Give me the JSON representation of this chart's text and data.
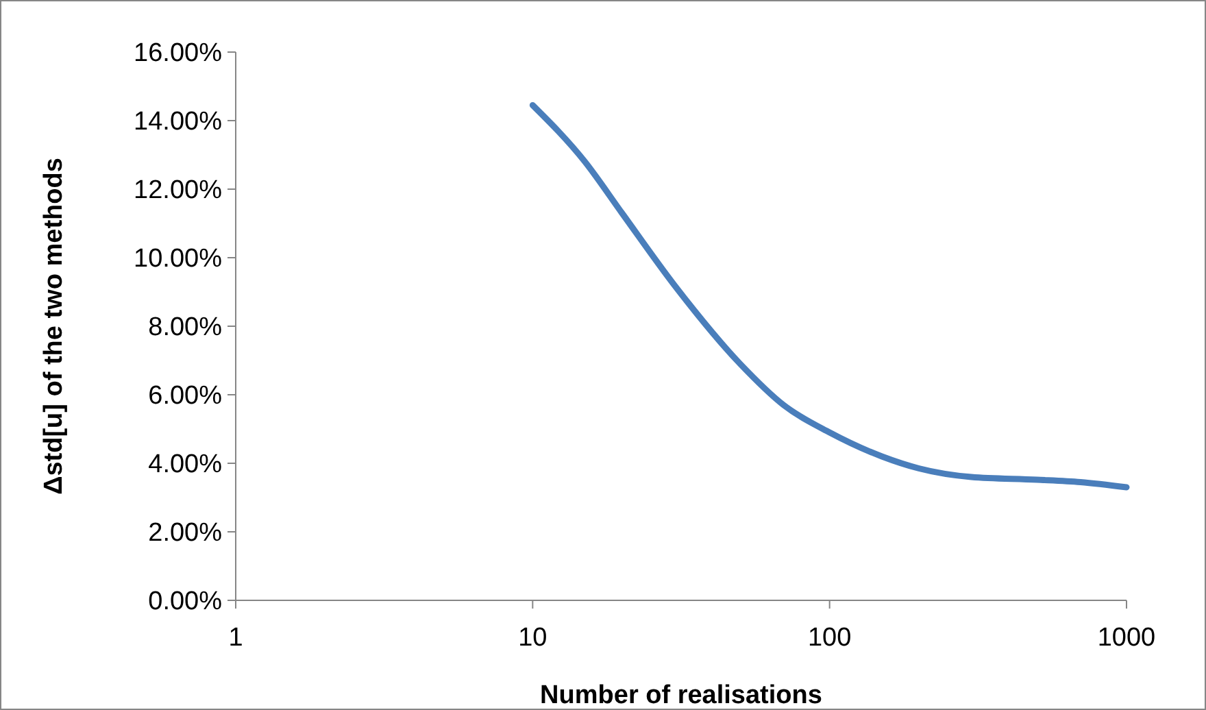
{
  "chart_data": {
    "type": "line",
    "xlabel": "Number of realisations",
    "ylabel": "Δstd[u] of the two methods",
    "log": "x",
    "xlim": [
      1,
      1000
    ],
    "xticks": [
      1,
      10,
      100,
      1000
    ],
    "ylim": [
      0,
      16
    ],
    "yticks": [
      {
        "value": 0,
        "label": "0.00%"
      },
      {
        "value": 2,
        "label": "2.00%"
      },
      {
        "value": 4,
        "label": "4.00%"
      },
      {
        "value": 6,
        "label": "6.00%"
      },
      {
        "value": 8,
        "label": "8.00%"
      },
      {
        "value": 10,
        "label": "10.00%"
      },
      {
        "value": 12,
        "label": "12.00%"
      },
      {
        "value": 14,
        "label": "14.00%"
      },
      {
        "value": 16,
        "label": "16.00%"
      }
    ],
    "grid": false,
    "marker": "none",
    "line_style": "solid",
    "series": [
      {
        "color": "#4a7ebb",
        "x": [
          10,
          15,
          20,
          30,
          50,
          70,
          100,
          150,
          200,
          300,
          500,
          700,
          1000
        ],
        "values": [
          14.45,
          12.8,
          11.3,
          9.2,
          6.9,
          5.7,
          4.9,
          4.2,
          3.85,
          3.6,
          3.52,
          3.45,
          3.3
        ]
      }
    ]
  }
}
